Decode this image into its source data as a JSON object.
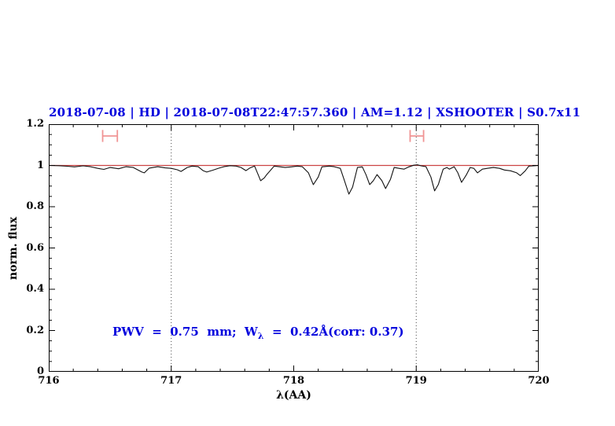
{
  "title": "2018-07-08 | HD | 2018-07-08T22:47:57.360 | AM=1.12 | XSHOOTER | S0.7x11",
  "annotation": {
    "prefix": "PWV  =  0.75  mm;  W",
    "sub": "λ",
    "suffix": "  =  0.42Å(corr: 0.37)"
  },
  "colors": {
    "accent_blue": "#0000dd",
    "continuum_red": "#cc4444",
    "marker_red": "#f09494",
    "spectrum_black": "#111111",
    "dotted_gray": "#444444",
    "frame_black": "#000000"
  },
  "chart_data": {
    "type": "line",
    "title": "2018-07-08 | HD | 2018-07-08T22:47:57.360 | AM=1.12 | XSHOOTER | S0.7x11",
    "xlabel": "λ(AA)",
    "ylabel": "norm. flux",
    "xlim": [
      716,
      720
    ],
    "ylim": [
      0,
      1.2
    ],
    "grid": false,
    "x_tick_labels": [
      "716",
      "717",
      "718",
      "719",
      "720"
    ],
    "x_major_step": 1,
    "x_minor_step": 0.2,
    "y_tick_labels": [
      "0",
      "0.2",
      "0.4",
      "0.6",
      "0.8",
      "1",
      "1.2"
    ],
    "y_major_step": 0.2,
    "y_minor_step": 0.05,
    "vlines": [
      717,
      719
    ],
    "continuum_level": 1.0,
    "range_markers": [
      {
        "x0": 716.44,
        "x1": 716.56,
        "y": 1.143,
        "cap_half": 0.029
      },
      {
        "x0": 718.95,
        "x1": 719.06,
        "y": 1.143,
        "cap_half": 0.029
      }
    ],
    "series": [
      {
        "name": "telluric-spectrum",
        "points": [
          [
            716.0,
            1.0
          ],
          [
            716.08,
            0.999
          ],
          [
            716.15,
            0.996
          ],
          [
            716.21,
            0.993
          ],
          [
            716.28,
            0.998
          ],
          [
            716.34,
            0.994
          ],
          [
            716.4,
            0.986
          ],
          [
            716.45,
            0.981
          ],
          [
            716.5,
            0.99
          ],
          [
            716.57,
            0.984
          ],
          [
            716.63,
            0.994
          ],
          [
            716.69,
            0.99
          ],
          [
            716.76,
            0.968
          ],
          [
            716.78,
            0.964
          ],
          [
            716.82,
            0.987
          ],
          [
            716.89,
            0.994
          ],
          [
            716.95,
            0.988
          ],
          [
            717.0,
            0.986
          ],
          [
            717.05,
            0.979
          ],
          [
            717.08,
            0.971
          ],
          [
            717.13,
            0.99
          ],
          [
            717.17,
            0.997
          ],
          [
            717.22,
            0.994
          ],
          [
            717.26,
            0.975
          ],
          [
            717.29,
            0.968
          ],
          [
            717.34,
            0.977
          ],
          [
            717.39,
            0.987
          ],
          [
            717.43,
            0.994
          ],
          [
            717.48,
            0.999
          ],
          [
            717.53,
            0.997
          ],
          [
            717.57,
            0.99
          ],
          [
            717.61,
            0.975
          ],
          [
            717.64,
            0.987
          ],
          [
            717.68,
            0.997
          ],
          [
            717.71,
            0.955
          ],
          [
            717.73,
            0.926
          ],
          [
            717.76,
            0.94
          ],
          [
            717.78,
            0.956
          ],
          [
            717.84,
            0.997
          ],
          [
            717.88,
            0.994
          ],
          [
            717.93,
            0.99
          ],
          [
            717.98,
            0.993
          ],
          [
            718.03,
            0.997
          ],
          [
            718.07,
            0.994
          ],
          [
            718.12,
            0.964
          ],
          [
            718.16,
            0.907
          ],
          [
            718.2,
            0.944
          ],
          [
            718.23,
            0.993
          ],
          [
            718.29,
            0.997
          ],
          [
            718.33,
            0.994
          ],
          [
            718.38,
            0.986
          ],
          [
            718.41,
            0.933
          ],
          [
            718.45,
            0.861
          ],
          [
            718.48,
            0.895
          ],
          [
            718.52,
            0.99
          ],
          [
            718.56,
            0.993
          ],
          [
            718.59,
            0.955
          ],
          [
            718.62,
            0.907
          ],
          [
            718.65,
            0.926
          ],
          [
            718.68,
            0.956
          ],
          [
            718.72,
            0.926
          ],
          [
            718.75,
            0.888
          ],
          [
            718.79,
            0.933
          ],
          [
            718.82,
            0.99
          ],
          [
            718.86,
            0.986
          ],
          [
            718.9,
            0.982
          ],
          [
            718.94,
            0.993
          ],
          [
            718.98,
            1.001
          ],
          [
            719.01,
            1.003
          ],
          [
            719.04,
            0.998
          ],
          [
            719.08,
            0.994
          ],
          [
            719.12,
            0.944
          ],
          [
            719.15,
            0.877
          ],
          [
            719.18,
            0.907
          ],
          [
            719.22,
            0.982
          ],
          [
            719.25,
            0.99
          ],
          [
            719.27,
            0.982
          ],
          [
            719.31,
            0.994
          ],
          [
            719.34,
            0.964
          ],
          [
            719.37,
            0.918
          ],
          [
            719.41,
            0.955
          ],
          [
            719.44,
            0.99
          ],
          [
            719.47,
            0.986
          ],
          [
            719.5,
            0.964
          ],
          [
            719.54,
            0.982
          ],
          [
            719.58,
            0.986
          ],
          [
            719.63,
            0.99
          ],
          [
            719.68,
            0.986
          ],
          [
            719.72,
            0.978
          ],
          [
            719.77,
            0.974
          ],
          [
            719.82,
            0.964
          ],
          [
            719.85,
            0.951
          ],
          [
            719.89,
            0.974
          ],
          [
            719.92,
            0.997
          ],
          [
            719.96,
            0.998
          ],
          [
            720.0,
            1.0
          ]
        ]
      }
    ]
  }
}
